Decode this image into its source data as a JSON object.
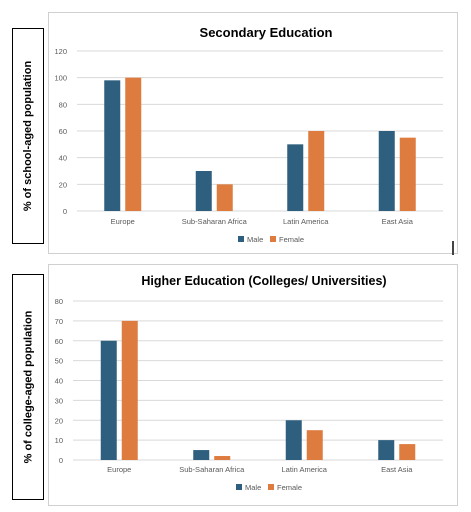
{
  "colors": {
    "male": "#2e5f7f",
    "female": "#de7b3f",
    "grid": "#d9d9d9",
    "text": "#595959"
  },
  "chart_data": [
    {
      "type": "bar",
      "title": "Secondary Education",
      "ylabel": "% of school-aged population",
      "xlabel": "",
      "categories": [
        "Europe",
        "Sub-Saharan Africa",
        "Latin America",
        "East Asia"
      ],
      "series": [
        {
          "name": "Male",
          "values": [
            98,
            30,
            50,
            60
          ]
        },
        {
          "name": "Female",
          "values": [
            100,
            20,
            60,
            55
          ]
        }
      ],
      "ylim": [
        0,
        120
      ],
      "yticks": [
        0,
        20,
        40,
        60,
        80,
        100,
        120
      ],
      "grid": true,
      "legend": "bottom"
    },
    {
      "type": "bar",
      "title": "Higher Education (Colleges/ Universities)",
      "ylabel": "% of college-aged population",
      "xlabel": "",
      "categories": [
        "Europe",
        "Sub-Saharan Africa",
        "Latin America",
        "East Asia"
      ],
      "series": [
        {
          "name": "Male",
          "values": [
            60,
            5,
            20,
            10
          ]
        },
        {
          "name": "Female",
          "values": [
            70,
            2,
            15,
            8
          ]
        }
      ],
      "ylim": [
        0,
        80
      ],
      "yticks": [
        0,
        10,
        20,
        30,
        40,
        50,
        60,
        70,
        80
      ],
      "grid": true,
      "legend": "bottom"
    }
  ]
}
